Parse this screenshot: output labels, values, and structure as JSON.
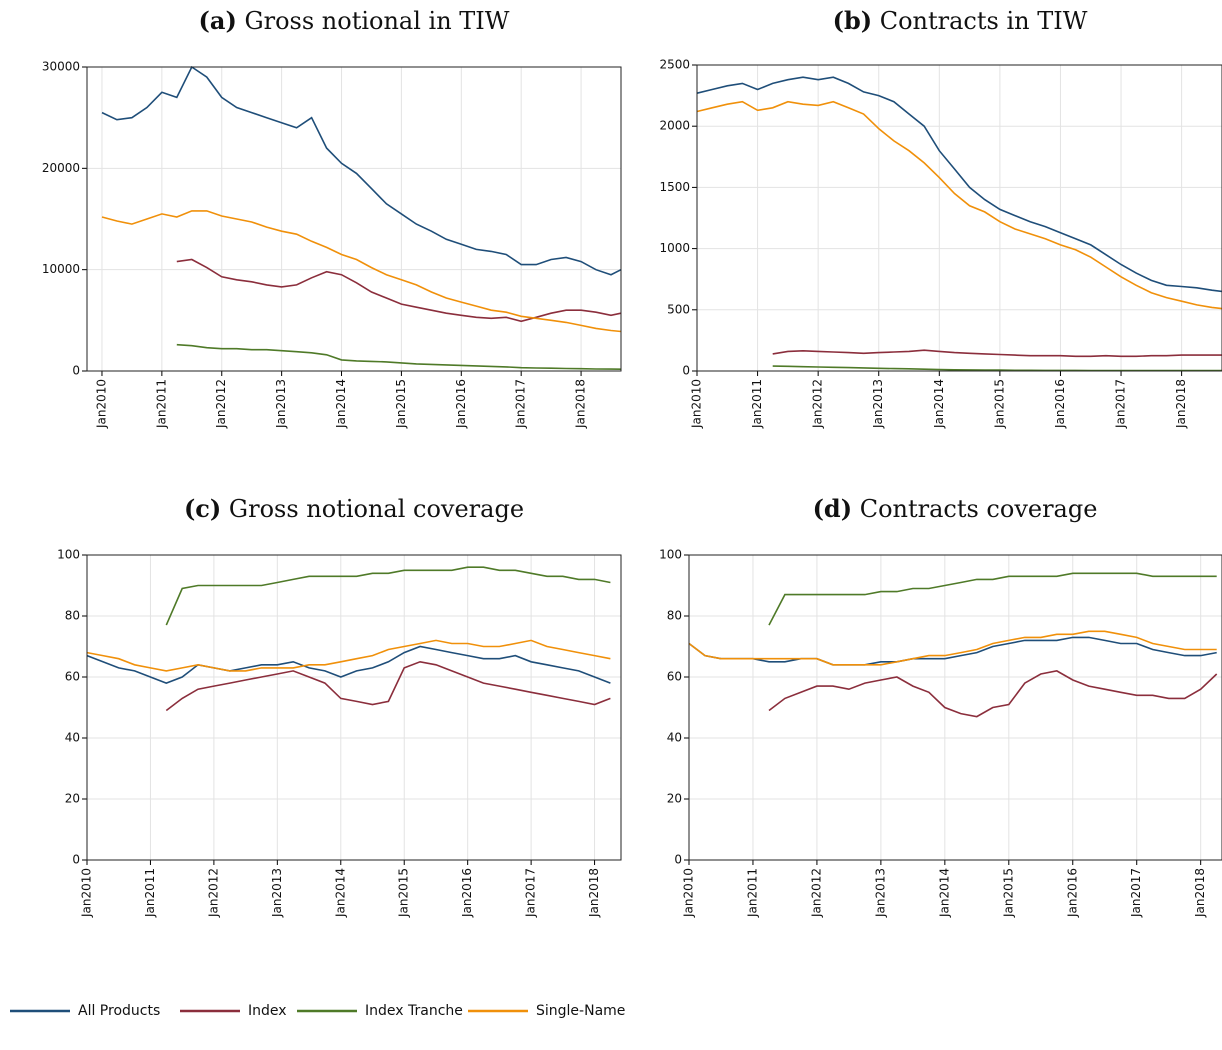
{
  "chart_data": [
    {
      "type": "line",
      "label": "(a)",
      "title": "Gross notional in TIW",
      "x": [
        "2010-01",
        "2010-04",
        "2010-07",
        "2010-10",
        "2011-01",
        "2011-04",
        "2011-07",
        "2011-10",
        "2012-01",
        "2012-04",
        "2012-07",
        "2012-10",
        "2013-01",
        "2013-04",
        "2013-07",
        "2013-10",
        "2014-01",
        "2014-04",
        "2014-07",
        "2014-10",
        "2015-01",
        "2015-04",
        "2015-07",
        "2015-10",
        "2016-01",
        "2016-04",
        "2016-07",
        "2016-10",
        "2017-01",
        "2017-04",
        "2017-07",
        "2017-10",
        "2018-01",
        "2018-04",
        "2018-07",
        "2018-09"
      ],
      "xlim": [
        "2009-10",
        "2018-09"
      ],
      "xticks": [
        {
          "value": "2010-01",
          "label": "Jan2010"
        },
        {
          "value": "2011-01",
          "label": "Jan2011"
        },
        {
          "value": "2012-01",
          "label": "Jan2012"
        },
        {
          "value": "2013-01",
          "label": "Jan2013"
        },
        {
          "value": "2014-01",
          "label": "Jan2014"
        },
        {
          "value": "2015-01",
          "label": "Jan2015"
        },
        {
          "value": "2016-01",
          "label": "Jan2016"
        },
        {
          "value": "2017-01",
          "label": "Jan2017"
        },
        {
          "value": "2018-01",
          "label": "Jan2018"
        }
      ],
      "ylim": [
        0,
        30000
      ],
      "yticks": [
        0,
        10000,
        20000,
        30000
      ],
      "grid": true,
      "series": [
        {
          "name": "All Products",
          "color": "#1f4e79",
          "values": [
            25500,
            24800,
            25000,
            26000,
            27500,
            27000,
            30000,
            29000,
            27000,
            26000,
            25500,
            25000,
            24500,
            24000,
            25000,
            22000,
            20500,
            19500,
            18000,
            16500,
            15500,
            14500,
            13800,
            13000,
            12500,
            12000,
            11800,
            11500,
            10500,
            10500,
            11000,
            11200,
            10800,
            10000,
            9500,
            10000
          ]
        },
        {
          "name": "Index",
          "color": "#8b2e3c",
          "values": [
            null,
            null,
            null,
            null,
            null,
            10800,
            11000,
            10200,
            9300,
            9000,
            8800,
            8500,
            8300,
            8500,
            9200,
            9800,
            9500,
            8700,
            7800,
            7200,
            6600,
            6300,
            6000,
            5700,
            5500,
            5300,
            5200,
            5300,
            4900,
            5300,
            5700,
            6000,
            6000,
            5800,
            5500,
            5700
          ]
        },
        {
          "name": "Index Tranche",
          "color": "#4f7a28",
          "values": [
            null,
            null,
            null,
            null,
            null,
            2600,
            2500,
            2300,
            2200,
            2200,
            2100,
            2100,
            2000,
            1900,
            1800,
            1600,
            1100,
            1000,
            950,
            900,
            800,
            700,
            650,
            600,
            550,
            500,
            450,
            400,
            330,
            300,
            280,
            250,
            230,
            200,
            190,
            180
          ]
        },
        {
          "name": "Single-Name",
          "color": "#f0900a",
          "values": [
            15200,
            14800,
            14500,
            15000,
            15500,
            15200,
            15800,
            15800,
            15300,
            15000,
            14700,
            14200,
            13800,
            13500,
            12800,
            12200,
            11500,
            11000,
            10200,
            9500,
            9000,
            8500,
            7800,
            7200,
            6800,
            6400,
            6000,
            5800,
            5400,
            5200,
            5000,
            4800,
            4500,
            4200,
            4000,
            3900
          ]
        }
      ]
    },
    {
      "type": "line",
      "label": "(b)",
      "title": "Contracts in TIW",
      "x": [
        "2010-01",
        "2010-04",
        "2010-07",
        "2010-10",
        "2011-01",
        "2011-04",
        "2011-07",
        "2011-10",
        "2012-01",
        "2012-04",
        "2012-07",
        "2012-10",
        "2013-01",
        "2013-04",
        "2013-07",
        "2013-10",
        "2014-01",
        "2014-04",
        "2014-07",
        "2014-10",
        "2015-01",
        "2015-04",
        "2015-07",
        "2015-10",
        "2016-01",
        "2016-04",
        "2016-07",
        "2016-10",
        "2017-01",
        "2017-04",
        "2017-07",
        "2017-10",
        "2018-01",
        "2018-04",
        "2018-07",
        "2018-09"
      ],
      "xlim": [
        "2010-01",
        "2018-09"
      ],
      "xticks": [
        {
          "value": "2010-01",
          "label": "Jan2010"
        },
        {
          "value": "2011-01",
          "label": "Jan2011"
        },
        {
          "value": "2012-01",
          "label": "Jan2012"
        },
        {
          "value": "2013-01",
          "label": "Jan2013"
        },
        {
          "value": "2014-01",
          "label": "Jan2014"
        },
        {
          "value": "2015-01",
          "label": "Jan2015"
        },
        {
          "value": "2016-01",
          "label": "Jan2016"
        },
        {
          "value": "2017-01",
          "label": "Jan2017"
        },
        {
          "value": "2018-01",
          "label": "Jan2018"
        }
      ],
      "ylim": [
        0,
        2500
      ],
      "yticks": [
        0,
        500,
        1000,
        1500,
        2000,
        2500
      ],
      "grid": true,
      "series": [
        {
          "name": "All Products",
          "color": "#1f4e79",
          "values": [
            2270,
            2300,
            2330,
            2350,
            2300,
            2350,
            2380,
            2400,
            2380,
            2400,
            2350,
            2280,
            2250,
            2200,
            2100,
            2000,
            1800,
            1650,
            1500,
            1400,
            1320,
            1270,
            1220,
            1180,
            1130,
            1080,
            1030,
            950,
            870,
            800,
            740,
            700,
            690,
            680,
            660,
            650
          ]
        },
        {
          "name": "Index",
          "color": "#8b2e3c",
          "values": [
            null,
            null,
            null,
            null,
            null,
            140,
            160,
            165,
            160,
            155,
            150,
            145,
            150,
            155,
            160,
            170,
            160,
            150,
            145,
            140,
            135,
            130,
            125,
            125,
            125,
            120,
            120,
            125,
            120,
            120,
            125,
            125,
            130,
            130,
            130,
            130
          ]
        },
        {
          "name": "Index Tranche",
          "color": "#4f7a28",
          "values": [
            null,
            null,
            null,
            null,
            null,
            40,
            38,
            35,
            33,
            30,
            28,
            25,
            22,
            20,
            18,
            15,
            12,
            10,
            9,
            8,
            7,
            6,
            6,
            5,
            5,
            5,
            4,
            4,
            4,
            3,
            3,
            3,
            3,
            3,
            3,
            3
          ]
        },
        {
          "name": "Single-Name",
          "color": "#f0900a",
          "values": [
            2120,
            2150,
            2180,
            2200,
            2130,
            2150,
            2200,
            2180,
            2170,
            2200,
            2150,
            2100,
            1980,
            1880,
            1800,
            1700,
            1580,
            1450,
            1350,
            1300,
            1220,
            1160,
            1120,
            1080,
            1030,
            990,
            930,
            850,
            770,
            700,
            640,
            600,
            570,
            540,
            520,
            510
          ]
        }
      ]
    },
    {
      "type": "line",
      "label": "(c)",
      "title": "Gross notional coverage",
      "x": [
        "2010-01",
        "2010-04",
        "2010-07",
        "2010-10",
        "2011-01",
        "2011-04",
        "2011-07",
        "2011-10",
        "2012-01",
        "2012-04",
        "2012-07",
        "2012-10",
        "2013-01",
        "2013-04",
        "2013-07",
        "2013-10",
        "2014-01",
        "2014-04",
        "2014-07",
        "2014-10",
        "2015-01",
        "2015-04",
        "2015-07",
        "2015-10",
        "2016-01",
        "2016-04",
        "2016-07",
        "2016-10",
        "2017-01",
        "2017-04",
        "2017-07",
        "2017-10",
        "2018-01",
        "2018-04"
      ],
      "xlim": [
        "2010-01",
        "2018-06"
      ],
      "xticks": [
        {
          "value": "2010-01",
          "label": "Jan2010"
        },
        {
          "value": "2011-01",
          "label": "Jan2011"
        },
        {
          "value": "2012-01",
          "label": "Jan2012"
        },
        {
          "value": "2013-01",
          "label": "Jan2013"
        },
        {
          "value": "2014-01",
          "label": "Jan2014"
        },
        {
          "value": "2015-01",
          "label": "Jan2015"
        },
        {
          "value": "2016-01",
          "label": "Jan2016"
        },
        {
          "value": "2017-01",
          "label": "Jan2017"
        },
        {
          "value": "2018-01",
          "label": "Jan2018"
        }
      ],
      "ylim": [
        0,
        100
      ],
      "yticks": [
        0,
        20,
        40,
        60,
        80,
        100
      ],
      "grid": true,
      "series": [
        {
          "name": "All Products",
          "color": "#1f4e79",
          "values": [
            67,
            65,
            63,
            62,
            60,
            58,
            60,
            64,
            63,
            62,
            63,
            64,
            64,
            65,
            63,
            62,
            60,
            62,
            63,
            65,
            68,
            70,
            69,
            68,
            67,
            66,
            66,
            67,
            65,
            64,
            63,
            62,
            60,
            58
          ]
        },
        {
          "name": "Index",
          "color": "#8b2e3c",
          "values": [
            null,
            null,
            null,
            null,
            null,
            49,
            53,
            56,
            57,
            58,
            59,
            60,
            61,
            62,
            60,
            58,
            53,
            52,
            51,
            52,
            63,
            65,
            64,
            62,
            60,
            58,
            57,
            56,
            55,
            54,
            53,
            52,
            51,
            53
          ]
        },
        {
          "name": "Index Tranche",
          "color": "#4f7a28",
          "values": [
            null,
            null,
            null,
            null,
            null,
            77,
            89,
            90,
            90,
            90,
            90,
            90,
            91,
            92,
            93,
            93,
            93,
            93,
            94,
            94,
            95,
            95,
            95,
            95,
            96,
            96,
            95,
            95,
            94,
            93,
            93,
            92,
            92,
            91
          ]
        },
        {
          "name": "Single-Name",
          "color": "#f0900a",
          "values": [
            68,
            67,
            66,
            64,
            63,
            62,
            63,
            64,
            63,
            62,
            62,
            63,
            63,
            63,
            64,
            64,
            65,
            66,
            67,
            69,
            70,
            71,
            72,
            71,
            71,
            70,
            70,
            71,
            72,
            70,
            69,
            68,
            67,
            66
          ]
        }
      ]
    },
    {
      "type": "line",
      "label": "(d)",
      "title": "Contracts coverage",
      "x": [
        "2010-01",
        "2010-04",
        "2010-07",
        "2010-10",
        "2011-01",
        "2011-04",
        "2011-07",
        "2011-10",
        "2012-01",
        "2012-04",
        "2012-07",
        "2012-10",
        "2013-01",
        "2013-04",
        "2013-07",
        "2013-10",
        "2014-01",
        "2014-04",
        "2014-07",
        "2014-10",
        "2015-01",
        "2015-04",
        "2015-07",
        "2015-10",
        "2016-01",
        "2016-04",
        "2016-07",
        "2016-10",
        "2017-01",
        "2017-04",
        "2017-07",
        "2017-10",
        "2018-01",
        "2018-04"
      ],
      "xlim": [
        "2010-01",
        "2018-05"
      ],
      "xticks": [
        {
          "value": "2010-01",
          "label": "Jan2010"
        },
        {
          "value": "2011-01",
          "label": "Jan2011"
        },
        {
          "value": "2012-01",
          "label": "Jan2012"
        },
        {
          "value": "2013-01",
          "label": "Jan2013"
        },
        {
          "value": "2014-01",
          "label": "Jan2014"
        },
        {
          "value": "2015-01",
          "label": "Jan2015"
        },
        {
          "value": "2016-01",
          "label": "Jan2016"
        },
        {
          "value": "2017-01",
          "label": "Jan2017"
        },
        {
          "value": "2018-01",
          "label": "Jan2018"
        }
      ],
      "ylim": [
        0,
        100
      ],
      "yticks": [
        0,
        20,
        40,
        60,
        80,
        100
      ],
      "grid": true,
      "series": [
        {
          "name": "All Products",
          "color": "#1f4e79",
          "values": [
            71,
            67,
            66,
            66,
            66,
            65,
            65,
            66,
            66,
            64,
            64,
            64,
            65,
            65,
            66,
            66,
            66,
            67,
            68,
            70,
            71,
            72,
            72,
            72,
            73,
            73,
            72,
            71,
            71,
            69,
            68,
            67,
            67,
            68
          ]
        },
        {
          "name": "Index",
          "color": "#8b2e3c",
          "values": [
            null,
            null,
            null,
            null,
            null,
            49,
            53,
            55,
            57,
            57,
            56,
            58,
            59,
            60,
            57,
            55,
            50,
            48,
            47,
            50,
            51,
            58,
            61,
            62,
            59,
            57,
            56,
            55,
            54,
            54,
            53,
            53,
            56,
            61
          ]
        },
        {
          "name": "Index Tranche",
          "color": "#4f7a28",
          "values": [
            null,
            null,
            null,
            null,
            null,
            77,
            87,
            87,
            87,
            87,
            87,
            87,
            88,
            88,
            89,
            89,
            90,
            91,
            92,
            92,
            93,
            93,
            93,
            93,
            94,
            94,
            94,
            94,
            94,
            93,
            93,
            93,
            93,
            93
          ]
        },
        {
          "name": "Single-Name",
          "color": "#f0900a",
          "values": [
            71,
            67,
            66,
            66,
            66,
            66,
            66,
            66,
            66,
            64,
            64,
            64,
            64,
            65,
            66,
            67,
            67,
            68,
            69,
            71,
            72,
            73,
            73,
            74,
            74,
            75,
            75,
            74,
            73,
            71,
            70,
            69,
            69,
            69
          ]
        }
      ]
    }
  ]
}
